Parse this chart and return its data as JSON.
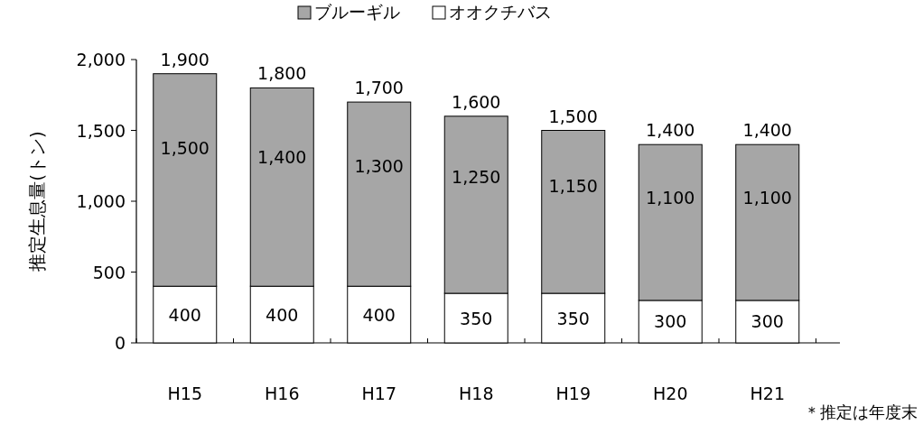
{
  "chart_data": {
    "type": "bar",
    "stacked": true,
    "categories": [
      "H15",
      "H16",
      "H17",
      "H18",
      "H19",
      "H20",
      "H21"
    ],
    "series": [
      {
        "name": "オオクチバス",
        "color": "#ffffff",
        "values": [
          400,
          400,
          400,
          350,
          350,
          300,
          300
        ],
        "value_labels": [
          "400",
          "400",
          "400",
          "350",
          "350",
          "300",
          "300"
        ]
      },
      {
        "name": "ブルーギル",
        "color": "#a6a6a6",
        "values": [
          1500,
          1400,
          1300,
          1250,
          1150,
          1100,
          1100
        ],
        "value_labels": [
          "1,500",
          "1,400",
          "1,300",
          "1,250",
          "1,150",
          "1,100",
          "1,100"
        ]
      }
    ],
    "totals": [
      "1,900",
      "1,800",
      "1,700",
      "1,600",
      "1,500",
      "1,400",
      "1,400"
    ],
    "ylabel": "推定生息量(トン)",
    "ylim": [
      0,
      2000
    ],
    "yticks": [
      0,
      500,
      {
        "value": 1000,
        "label": "1,000"
      },
      {
        "value": 1500,
        "label": "1,500"
      },
      {
        "value": 2000,
        "label": "2,000"
      }
    ],
    "legend": "top",
    "grid": false,
    "annotations": [
      "＊推定は年度末"
    ]
  }
}
